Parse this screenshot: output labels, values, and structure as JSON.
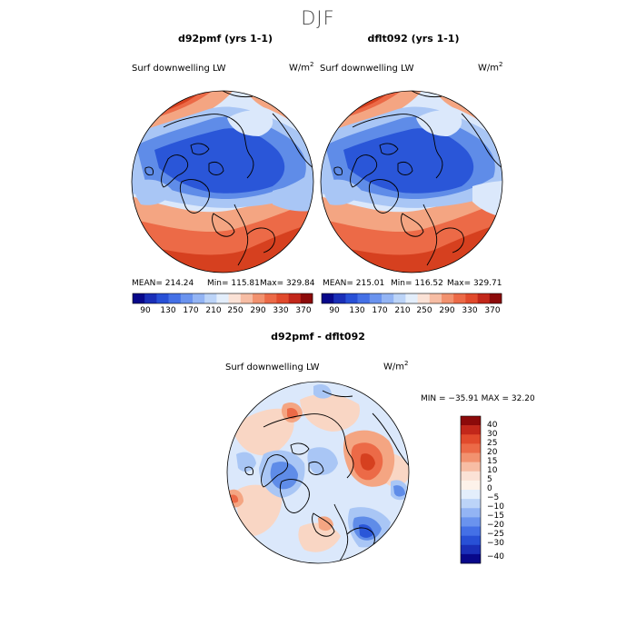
{
  "page": {
    "title": "DJF"
  },
  "panels": [
    {
      "title": "d92pmf (yrs 1-1)",
      "variable": "Surf downwelling LW",
      "units_base": "W/m",
      "units_exp": "2",
      "mean_label": "MEAN= 214.24",
      "min_label": "Min= 115.81",
      "max_label": "Max= 329.84"
    },
    {
      "title": "dflt092 (yrs 1-1)",
      "variable": "Surf downwelling LW",
      "units_base": "W/m",
      "units_exp": "2",
      "mean_label": "MEAN= 215.01",
      "min_label": "Min= 116.52",
      "max_label": "Max= 329.71"
    }
  ],
  "diff_panel": {
    "title": "d92pmf - dflt092",
    "variable": "Surf downwelling LW",
    "units_base": "W/m",
    "units_exp": "2",
    "minmax_label": "MIN = −35.91 MAX =  32.20"
  },
  "top_colorbar": {
    "colors": [
      "#08088a",
      "#1a2fb8",
      "#2850d6",
      "#4470e6",
      "#6a93ee",
      "#93b4f4",
      "#bcd4f8",
      "#e3eefb",
      "#fbe2d6",
      "#f7bda4",
      "#f2926f",
      "#ec6a47",
      "#e14a2c",
      "#c2271a",
      "#8c0a0a"
    ],
    "tick_labels": [
      "90",
      "130",
      "170",
      "210",
      "250",
      "290",
      "330",
      "370"
    ]
  },
  "diff_colorbar": {
    "colors": [
      "#8c0a0a",
      "#c2271a",
      "#e14a2c",
      "#ec6a47",
      "#f2926f",
      "#f7bda4",
      "#fbe2d6",
      "#fdf2ea",
      "#e3eefb",
      "#bcd4f8",
      "#93b4f4",
      "#6a93ee",
      "#4470e6",
      "#2850d6",
      "#1a2fb8",
      "#08088a"
    ],
    "tick_labels": [
      "40",
      "30",
      "25",
      "20",
      "15",
      "10",
      "5",
      "0",
      "−5",
      "−10",
      "−15",
      "−20",
      "−25",
      "−30",
      "−40"
    ]
  },
  "map_colors": {
    "deep_blue": "#2a56d8",
    "mid_blue": "#5f8ce8",
    "light_blue": "#a9c6f5",
    "pale_blue": "#dbe8fb",
    "pale_red": "#f9d6c4",
    "light_red": "#f4a582",
    "mid_red": "#ec6a47",
    "deep_red": "#d6401f",
    "coast": "#000000"
  }
}
